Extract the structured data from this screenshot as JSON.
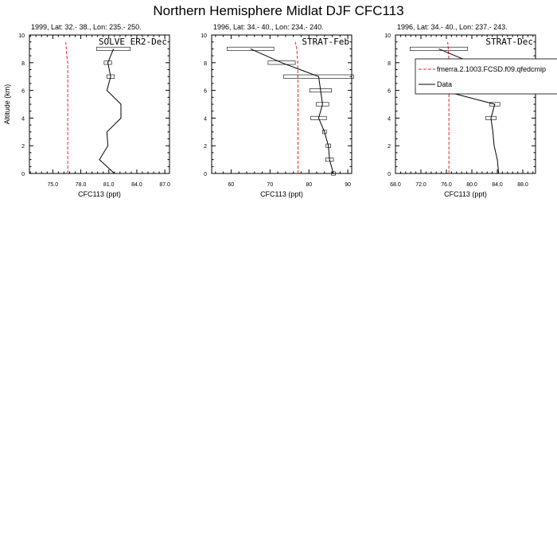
{
  "figure": {
    "title": "Northern Hemisphere Midlat DJF CFC113"
  },
  "legend": {
    "model_label": "fmerra.2.1003.FCSD.f09.qfedcmip",
    "data_label": "Data",
    "model_color": "#e8262a",
    "data_color": "#000000"
  },
  "chart_data": [
    {
      "type": "line",
      "subtitle": "1999, Lat: 32.- 38., Lon: 235.- 250.",
      "campaign": "SOLVE ER2-Dec",
      "xlabel": "CFC113 (ppt)",
      "ylabel": "Altitude (km)",
      "xlim": [
        72.5,
        87.5
      ],
      "ylim": [
        0,
        10
      ],
      "xticks": [
        75.0,
        78.0,
        81.0,
        84.0,
        87.0
      ],
      "xtick_labels": [
        "75.0",
        "78.0",
        "81.0",
        "84.0",
        "87.0"
      ],
      "yticks": [
        0,
        2,
        4,
        6,
        8,
        10
      ],
      "model": {
        "alt": [
          0,
          1,
          2,
          3,
          4,
          5,
          6,
          7,
          8,
          8.5,
          9,
          9.5
        ],
        "x": [
          76.6,
          76.6,
          76.6,
          76.6,
          76.6,
          76.6,
          76.6,
          76.6,
          76.6,
          76.5,
          76.45,
          76.4
        ]
      },
      "data": {
        "alt": [
          0,
          1,
          2,
          3,
          4,
          5,
          6,
          7,
          8,
          9
        ],
        "x": [
          81.6,
          80.0,
          80.9,
          80.8,
          82.3,
          82.3,
          80.8,
          81.2,
          80.9,
          81.5
        ],
        "err": [
          0,
          0,
          0,
          0,
          0,
          0,
          0,
          0.4,
          0.4,
          1.8
        ]
      }
    },
    {
      "type": "line",
      "subtitle": "1996, Lat: 34.- 40., Lon: 234.- 240.",
      "campaign": "STRAT-Feb",
      "xlabel": "CFC113 (ppt)",
      "ylabel": "",
      "xlim": [
        55,
        91
      ],
      "ylim": [
        0,
        10
      ],
      "xticks": [
        60,
        70,
        80,
        90
      ],
      "xtick_labels": [
        "60",
        "70",
        "80",
        "90"
      ],
      "yticks": [
        0,
        2,
        4,
        6,
        8,
        10
      ],
      "model": {
        "alt": [
          0,
          2,
          4,
          6,
          8,
          9,
          9.5
        ],
        "x": [
          77.2,
          77.2,
          77.2,
          77.2,
          77.1,
          76.9,
          76.5
        ]
      },
      "data": {
        "alt": [
          0,
          1,
          2,
          3,
          4,
          5,
          6,
          7,
          8,
          9
        ],
        "x": [
          86.3,
          85.3,
          85.0,
          84.0,
          82.5,
          83.5,
          83.0,
          82.5,
          73.0,
          65.0
        ],
        "err": [
          0.5,
          1.0,
          0.6,
          0.5,
          2.0,
          1.6,
          2.8,
          9.0,
          3.5,
          6.0
        ]
      }
    },
    {
      "type": "line",
      "subtitle": "1996, Lat: 34.- 40., Lon: 237.- 243.",
      "campaign": "STRAT-Dec",
      "xlabel": "CFC113 (ppt)",
      "ylabel": "",
      "xlim": [
        68,
        90
      ],
      "ylim": [
        0,
        10
      ],
      "xticks": [
        68.0,
        72.0,
        76.0,
        80.0,
        84.0,
        88.0
      ],
      "xtick_labels": [
        "68.0",
        "72.0",
        "76.0",
        "80.0",
        "84.0",
        "88.0"
      ],
      "yticks": [
        0,
        2,
        4,
        6,
        8,
        10
      ],
      "model": {
        "alt": [
          0,
          2,
          4,
          6,
          8,
          9,
          9.5
        ],
        "x": [
          76.4,
          76.4,
          76.4,
          76.4,
          76.4,
          76.3,
          76.2
        ]
      },
      "data": {
        "alt": [
          0,
          1,
          2,
          3,
          4,
          5,
          6,
          7,
          8,
          9
        ],
        "x": [
          84.2,
          84.0,
          83.5,
          83.3,
          83.0,
          83.6,
          75.3,
          84.4,
          80.0,
          74.8
        ],
        "err": [
          0,
          0,
          0,
          0,
          0.8,
          0.8,
          3.8,
          0,
          1.7,
          4.5
        ]
      }
    }
  ]
}
